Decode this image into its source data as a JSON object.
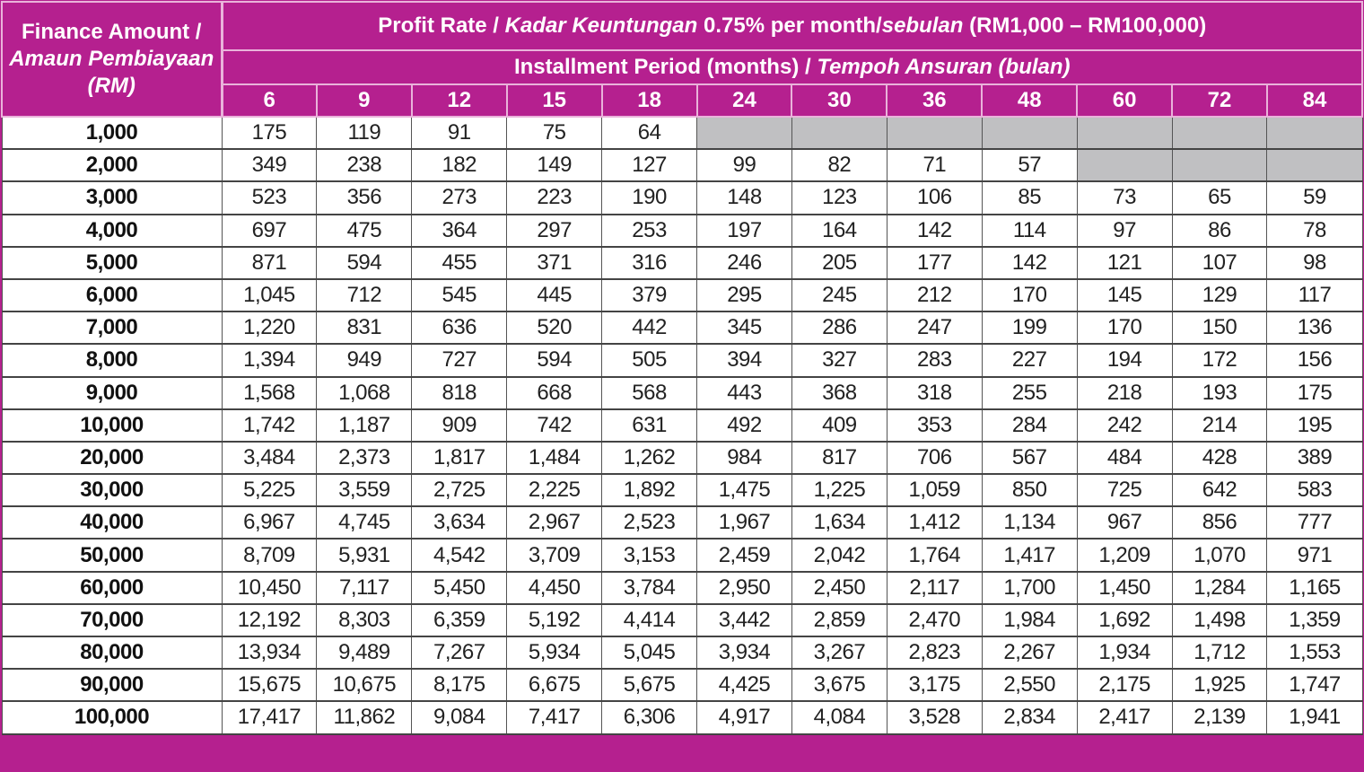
{
  "colors": {
    "header_bg": "#b5208f",
    "header_text": "#ffffff",
    "unavailable_cell": "#c0c0c2"
  },
  "header": {
    "amount_label_en": "Finance Amount / ",
    "amount_label_ms": "Amaun Pembiayaan (RM)",
    "profit_rate_en": "Profit Rate / ",
    "profit_rate_ms": "Kadar Keuntungan",
    "profit_rate_value": " 0.75% per month/",
    "profit_rate_ms2": "sebulan",
    "profit_rate_range": " (RM1,000 – RM100,000)",
    "period_en": "Installment Period (months) / ",
    "period_ms": "Tempoh Ansuran (bulan)",
    "periods": [
      "6",
      "9",
      "12",
      "15",
      "18",
      "24",
      "30",
      "36",
      "48",
      "60",
      "72",
      "84"
    ]
  },
  "rows": [
    {
      "amount": "1,000",
      "values": [
        "175",
        "119",
        "91",
        "75",
        "64",
        null,
        null,
        null,
        null,
        null,
        null,
        null
      ]
    },
    {
      "amount": "2,000",
      "values": [
        "349",
        "238",
        "182",
        "149",
        "127",
        "99",
        "82",
        "71",
        "57",
        null,
        null,
        null
      ]
    },
    {
      "amount": "3,000",
      "values": [
        "523",
        "356",
        "273",
        "223",
        "190",
        "148",
        "123",
        "106",
        "85",
        "73",
        "65",
        "59"
      ]
    },
    {
      "amount": "4,000",
      "values": [
        "697",
        "475",
        "364",
        "297",
        "253",
        "197",
        "164",
        "142",
        "114",
        "97",
        "86",
        "78"
      ]
    },
    {
      "amount": "5,000",
      "values": [
        "871",
        "594",
        "455",
        "371",
        "316",
        "246",
        "205",
        "177",
        "142",
        "121",
        "107",
        "98"
      ]
    },
    {
      "amount": "6,000",
      "values": [
        "1,045",
        "712",
        "545",
        "445",
        "379",
        "295",
        "245",
        "212",
        "170",
        "145",
        "129",
        "117"
      ]
    },
    {
      "amount": "7,000",
      "values": [
        "1,220",
        "831",
        "636",
        "520",
        "442",
        "345",
        "286",
        "247",
        "199",
        "170",
        "150",
        "136"
      ]
    },
    {
      "amount": "8,000",
      "values": [
        "1,394",
        "949",
        "727",
        "594",
        "505",
        "394",
        "327",
        "283",
        "227",
        "194",
        "172",
        "156"
      ]
    },
    {
      "amount": "9,000",
      "values": [
        "1,568",
        "1,068",
        "818",
        "668",
        "568",
        "443",
        "368",
        "318",
        "255",
        "218",
        "193",
        "175"
      ]
    },
    {
      "amount": "10,000",
      "values": [
        "1,742",
        "1,187",
        "909",
        "742",
        "631",
        "492",
        "409",
        "353",
        "284",
        "242",
        "214",
        "195"
      ]
    },
    {
      "amount": "20,000",
      "values": [
        "3,484",
        "2,373",
        "1,817",
        "1,484",
        "1,262",
        "984",
        "817",
        "706",
        "567",
        "484",
        "428",
        "389"
      ]
    },
    {
      "amount": "30,000",
      "values": [
        "5,225",
        "3,559",
        "2,725",
        "2,225",
        "1,892",
        "1,475",
        "1,225",
        "1,059",
        "850",
        "725",
        "642",
        "583"
      ]
    },
    {
      "amount": "40,000",
      "values": [
        "6,967",
        "4,745",
        "3,634",
        "2,967",
        "2,523",
        "1,967",
        "1,634",
        "1,412",
        "1,134",
        "967",
        "856",
        "777"
      ]
    },
    {
      "amount": "50,000",
      "values": [
        "8,709",
        "5,931",
        "4,542",
        "3,709",
        "3,153",
        "2,459",
        "2,042",
        "1,764",
        "1,417",
        "1,209",
        "1,070",
        "971"
      ]
    },
    {
      "amount": "60,000",
      "values": [
        "10,450",
        "7,117",
        "5,450",
        "4,450",
        "3,784",
        "2,950",
        "2,450",
        "2,117",
        "1,700",
        "1,450",
        "1,284",
        "1,165"
      ]
    },
    {
      "amount": "70,000",
      "values": [
        "12,192",
        "8,303",
        "6,359",
        "5,192",
        "4,414",
        "3,442",
        "2,859",
        "2,470",
        "1,984",
        "1,692",
        "1,498",
        "1,359"
      ]
    },
    {
      "amount": "80,000",
      "values": [
        "13,934",
        "9,489",
        "7,267",
        "5,934",
        "5,045",
        "3,934",
        "3,267",
        "2,823",
        "2,267",
        "1,934",
        "1,712",
        "1,553"
      ]
    },
    {
      "amount": "90,000",
      "values": [
        "15,675",
        "10,675",
        "8,175",
        "6,675",
        "5,675",
        "4,425",
        "3,675",
        "3,175",
        "2,550",
        "2,175",
        "1,925",
        "1,747"
      ]
    },
    {
      "amount": "100,000",
      "values": [
        "17,417",
        "11,862",
        "9,084",
        "7,417",
        "6,306",
        "4,917",
        "4,084",
        "3,528",
        "2,834",
        "2,417",
        "2,139",
        "1,941"
      ]
    }
  ]
}
